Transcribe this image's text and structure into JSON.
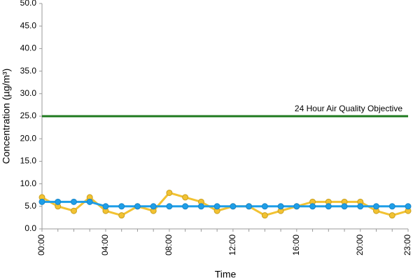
{
  "chart_data": {
    "type": "line",
    "y_label": "Concentration (µg/m³)",
    "x_label": "Time",
    "categories": [
      "00:00",
      null,
      null,
      null,
      "04:00",
      null,
      null,
      null,
      "08:00",
      null,
      null,
      null,
      "12:00",
      null,
      null,
      null,
      "16:00",
      null,
      null,
      null,
      "20:00",
      null,
      null,
      "23:00"
    ],
    "series": [
      {
        "color": "#f2c232",
        "values": [
          7,
          5,
          4,
          7,
          4,
          3,
          5,
          4,
          8,
          7,
          6,
          4,
          5,
          5,
          3,
          4,
          5,
          6,
          6,
          6,
          6,
          4,
          3,
          4
        ]
      },
      {
        "color": "#1e9ee8",
        "values": [
          6,
          6,
          6,
          6,
          5,
          5,
          5,
          5,
          5,
          5,
          5,
          5,
          5,
          5,
          5,
          5,
          5,
          5,
          5,
          5,
          5,
          5,
          5,
          5
        ]
      }
    ],
    "reference_line": {
      "value": 25,
      "label": "24 Hour Air Quality Objective",
      "color": "#1f7a1f"
    },
    "ylim": [
      0,
      50
    ],
    "yticks": [
      {
        "value": 0,
        "label": "0.0"
      },
      {
        "value": 5,
        "label": "5.0"
      },
      {
        "value": 10,
        "label": "10.0"
      },
      {
        "value": 15,
        "label": "15.0"
      },
      {
        "value": 20,
        "label": "20.0"
      },
      {
        "value": 25,
        "label": "25.0"
      },
      {
        "value": 30,
        "label": "30.0"
      },
      {
        "value": 35,
        "label": "35.0"
      },
      {
        "value": 40,
        "label": "40.0"
      },
      {
        "value": 45,
        "label": "45.0"
      },
      {
        "value": 50,
        "label": "50.0"
      }
    ]
  }
}
